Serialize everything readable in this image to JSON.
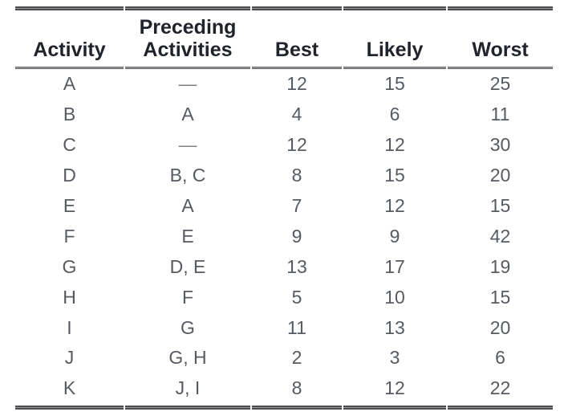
{
  "colors": {
    "background": "#ffffff",
    "header_text": "#21232c",
    "body_text": "#565a61",
    "dash_text": "#7d8186",
    "rule_dark": "#4a4c50",
    "rule_light": "#97999c"
  },
  "table": {
    "header": {
      "activity": "Activity",
      "preceding_line1": "Preceding",
      "preceding_line2": "Activities",
      "best": "Best",
      "likely": "Likely",
      "worst": "Worst"
    },
    "rows": [
      {
        "activity": "A",
        "preceding": "—",
        "best": "12",
        "likely": "15",
        "worst": "25"
      },
      {
        "activity": "B",
        "preceding": "A",
        "best": "4",
        "likely": "6",
        "worst": "11"
      },
      {
        "activity": "C",
        "preceding": "—",
        "best": "12",
        "likely": "12",
        "worst": "30"
      },
      {
        "activity": "D",
        "preceding": "B, C",
        "best": "8",
        "likely": "15",
        "worst": "20"
      },
      {
        "activity": "E",
        "preceding": "A",
        "best": "7",
        "likely": "12",
        "worst": "15"
      },
      {
        "activity": "F",
        "preceding": "E",
        "best": "9",
        "likely": "9",
        "worst": "42"
      },
      {
        "activity": "G",
        "preceding": "D, E",
        "best": "13",
        "likely": "17",
        "worst": "19"
      },
      {
        "activity": "H",
        "preceding": "F",
        "best": "5",
        "likely": "10",
        "worst": "15"
      },
      {
        "activity": "I",
        "preceding": "G",
        "best": "11",
        "likely": "13",
        "worst": "20"
      },
      {
        "activity": "J",
        "preceding": "G, H",
        "best": "2",
        "likely": "3",
        "worst": "6"
      },
      {
        "activity": "K",
        "preceding": "J, I",
        "best": "8",
        "likely": "12",
        "worst": "22"
      }
    ]
  }
}
